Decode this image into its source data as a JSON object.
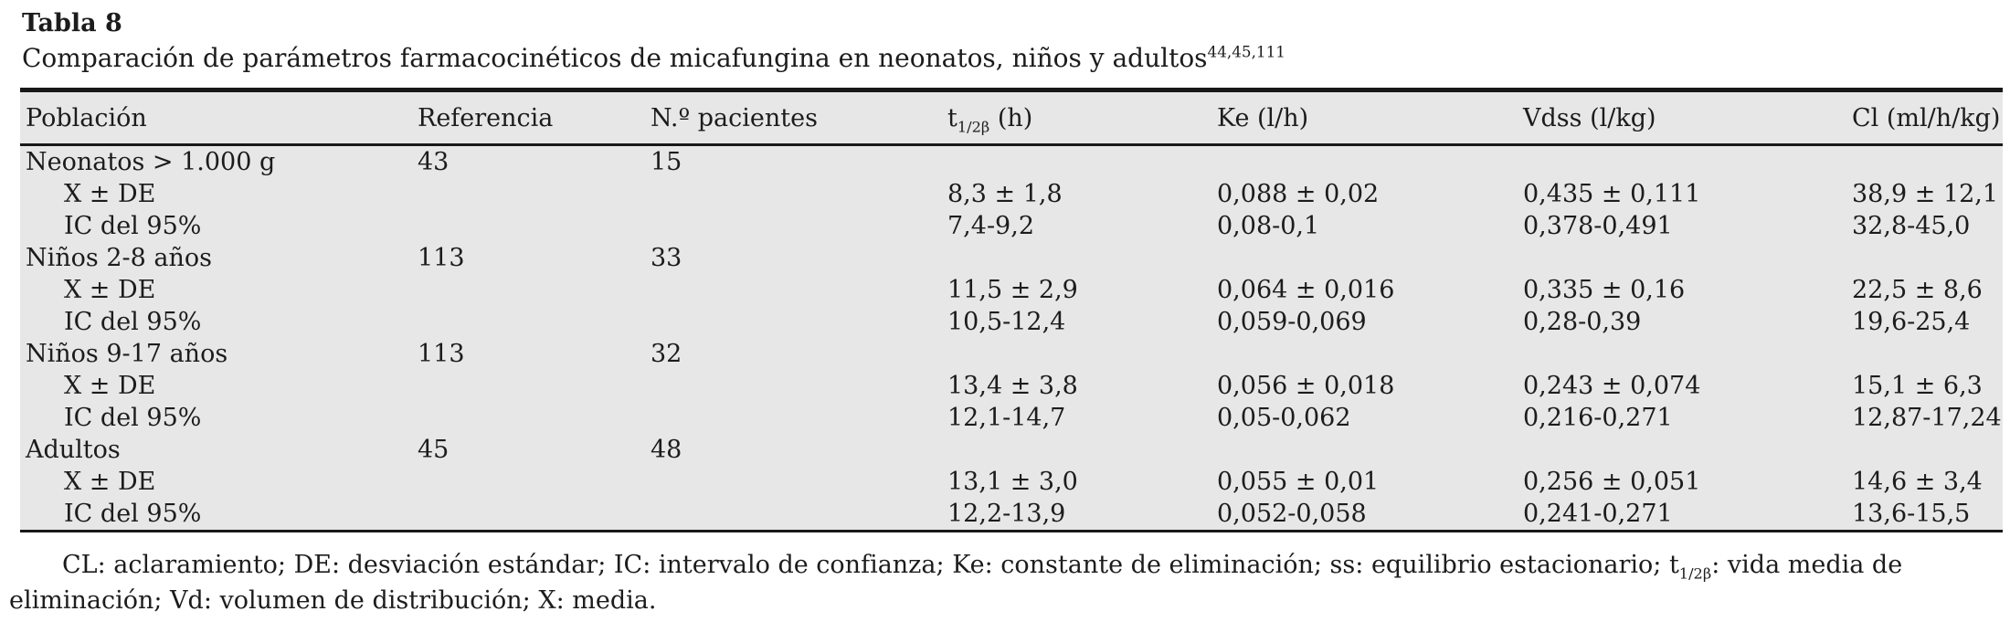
{
  "table": {
    "label": "Tabla 8",
    "caption": "Comparación de parámetros farmacocinéticos de micafungina en neonatos, niños y adultos",
    "caption_refs": "44,45,111",
    "background_color": "#e7e7e7",
    "rule_color": "#181818",
    "columns": [
      "Población",
      "Referencia",
      "N.º pacientes",
      "",
      "Ke (l/h)",
      "Vdss (l/kg)",
      "Cl (ml/h/kg)"
    ],
    "t_half_header": {
      "base": "t",
      "sub": "1/2β",
      "unit": " (h)"
    },
    "sub_row_labels": {
      "mean": "X ± DE",
      "ci": "IC del 95%"
    },
    "groups": [
      {
        "name": "Neonatos > 1.000 g",
        "referencia": "43",
        "pacientes": "15",
        "x_de": [
          "8,3 ± 1,8",
          "0,088 ± 0,02",
          "0,435 ± 0,111",
          "38,9 ± 12,1"
        ],
        "ic95": [
          "7,4-9,2",
          "0,08-0,1",
          "0,378-0,491",
          "32,8-45,0"
        ]
      },
      {
        "name": "Niños 2-8 años",
        "referencia": "113",
        "pacientes": "33",
        "x_de": [
          "11,5 ± 2,9",
          "0,064 ± 0,016",
          "0,335 ± 0,16",
          "22,5 ± 8,6"
        ],
        "ic95": [
          "10,5-12,4",
          "0,059-0,069",
          "0,28-0,39",
          "19,6-25,4"
        ]
      },
      {
        "name": "Niños 9-17 años",
        "referencia": "113",
        "pacientes": "32",
        "x_de": [
          "13,4 ± 3,8",
          "0,056 ± 0,018",
          "0,243 ± 0,074",
          "15,1 ± 6,3"
        ],
        "ic95": [
          "12,1-14,7",
          "0,05-0,062",
          "0,216-0,271",
          "12,87-17,24"
        ]
      },
      {
        "name": "Adultos",
        "referencia": "45",
        "pacientes": "48",
        "x_de": [
          "13,1 ± 3,0",
          "0,055 ± 0,01",
          "0,256 ± 0,051",
          "14,6 ± 3,4"
        ],
        "ic95": [
          "12,2-13,9",
          "0,052-0,058",
          "0,241-0,271",
          "13,6-15,5"
        ]
      }
    ]
  },
  "footnote": {
    "part1": "CL: aclaramiento; DE: desviación estándar; IC: intervalo de confianza; Ke: constante de eliminación; ss: equilibrio estacionario; ",
    "t_base": "t",
    "t_sub": "1/2β",
    "part2": ": vida media de eliminación; Vd: volumen de distribución; X: media."
  }
}
